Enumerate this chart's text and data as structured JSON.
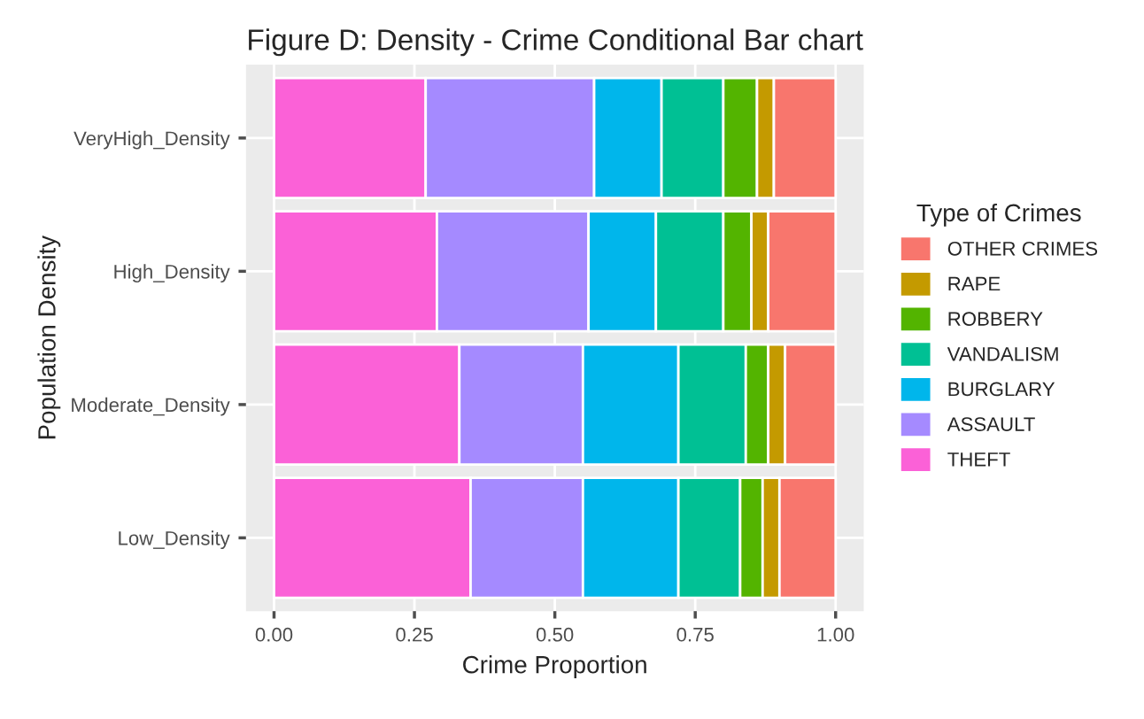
{
  "chart_data": {
    "type": "bar",
    "orientation": "horizontal",
    "stacked": true,
    "title": "Figure D: Density - Crime Conditional Bar chart",
    "xlabel": "Crime Proportion",
    "ylabel": "Population Density",
    "legend_title": "Type of Crimes",
    "categories": [
      "VeryHigh_Density",
      "High_Density",
      "Moderate_Density",
      "Low_Density"
    ],
    "series": [
      {
        "name": "THEFT",
        "color": "#fb61d7",
        "values": [
          0.27,
          0.29,
          0.33,
          0.35
        ]
      },
      {
        "name": "ASSAULT",
        "color": "#a58aff",
        "values": [
          0.3,
          0.27,
          0.22,
          0.2
        ]
      },
      {
        "name": "BURGLARY",
        "color": "#00b6eb",
        "values": [
          0.12,
          0.12,
          0.17,
          0.17
        ]
      },
      {
        "name": "VANDALISM",
        "color": "#00c094",
        "values": [
          0.11,
          0.12,
          0.12,
          0.11
        ]
      },
      {
        "name": "ROBBERY",
        "color": "#53b400",
        "values": [
          0.06,
          0.05,
          0.04,
          0.04
        ]
      },
      {
        "name": "RAPE",
        "color": "#c49a00",
        "values": [
          0.03,
          0.03,
          0.03,
          0.03
        ]
      },
      {
        "name": "OTHER CRIMES",
        "color": "#f8766d",
        "values": [
          0.11,
          0.12,
          0.09,
          0.1
        ]
      }
    ],
    "xlim": [
      -0.05,
      1.05
    ],
    "xticks": [
      {
        "value": 0,
        "label": "0.00"
      },
      {
        "value": 0.25,
        "label": "0.25"
      },
      {
        "value": 0.5,
        "label": "0.50"
      },
      {
        "value": 0.75,
        "label": "0.75"
      },
      {
        "value": 1,
        "label": "1.00"
      }
    ],
    "grid": true,
    "legend": "right"
  }
}
